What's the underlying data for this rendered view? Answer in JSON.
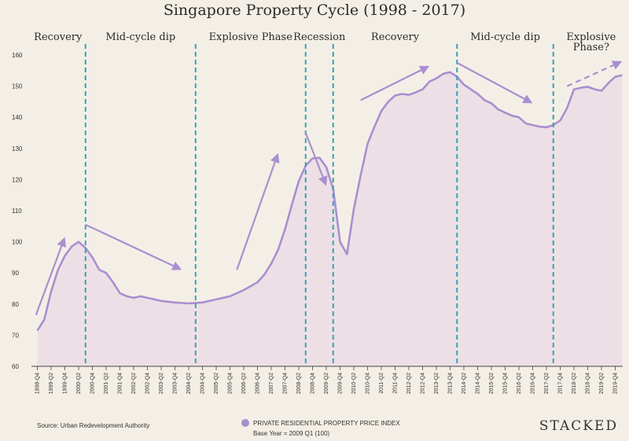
{
  "chart_data": {
    "type": "area",
    "title": "Singapore Property Cycle (1998 - 2017)",
    "ylim": [
      60,
      160
    ],
    "yticks": [
      60,
      70,
      80,
      90,
      100,
      110,
      120,
      130,
      140,
      150,
      160
    ],
    "x": [
      "1998-Q4",
      "1999-Q2",
      "1999-Q4",
      "2000-Q2",
      "2000-Q4",
      "2001-Q2",
      "2001-Q4",
      "2002-Q2",
      "2002-Q4",
      "2003-Q2",
      "2003-Q4",
      "2004-Q2",
      "2004-Q4",
      "2005-Q2",
      "2005-Q4",
      "2006-Q2",
      "2006-Q4",
      "2007-Q2",
      "2007-Q4",
      "2008-Q2",
      "2008-Q4",
      "2009-Q2",
      "2009-Q4",
      "2010-Q2",
      "2010-Q4",
      "2011-Q2",
      "2011-Q4",
      "2012-Q2",
      "2012-Q4",
      "2013-Q2",
      "2013-Q4",
      "2014-Q2",
      "2014-Q4",
      "2015-Q2",
      "2015-Q4",
      "2016-Q2",
      "2016-Q4",
      "2017-Q2",
      "2017-Q4",
      "2018-Q2",
      "2018-Q4",
      "2019-Q2",
      "2019-Q4"
    ],
    "series": [
      {
        "name": "PRIVATE RESIDENTIAL PROPERTY PRICE INDEX",
        "color": "#a98fcf",
        "x": [
          0,
          0.5,
          1,
          1.5,
          2,
          2.5,
          3,
          3.5,
          4,
          4.5,
          5,
          5.5,
          6,
          6.5,
          7,
          7.5,
          8,
          9,
          10,
          11,
          12,
          13,
          14,
          15,
          16,
          16.5,
          17,
          17.5,
          18,
          18.5,
          19,
          19.5,
          20,
          20.5,
          21,
          21.5,
          22,
          22.5,
          23,
          23.5,
          24,
          24.5,
          25,
          25.5,
          26,
          26.5,
          27,
          27.5,
          28,
          28.5,
          29,
          29.5,
          30,
          30.5,
          31,
          31.5,
          32,
          32.5,
          33,
          33.5,
          34,
          34.5,
          35,
          35.5,
          36,
          36.5,
          37,
          37.5,
          38,
          38.5,
          39,
          39.5,
          40,
          40.5,
          41,
          41.5,
          42,
          42.5
        ],
        "values": [
          71.5,
          75,
          84,
          91,
          95.5,
          98.5,
          100,
          98,
          95,
          91,
          90,
          87,
          83.5,
          82.5,
          82,
          82.5,
          82,
          81,
          80.5,
          80.2,
          80.5,
          81.5,
          82.5,
          84.5,
          87,
          89.5,
          93,
          97.5,
          104,
          112,
          119.5,
          124.5,
          126.8,
          127,
          124,
          117,
          100,
          96,
          110.5,
          121.5,
          131.5,
          137,
          142,
          145,
          147,
          147.5,
          147.2,
          148,
          149,
          151.5,
          152.5,
          154,
          154.5,
          153,
          150.5,
          149,
          147.5,
          145.5,
          144.5,
          142.5,
          141.5,
          140.5,
          140,
          138,
          137.5,
          137,
          136.8,
          137.5,
          139,
          143,
          149,
          149.5,
          149.8,
          149,
          148.5,
          151,
          153,
          153.5
        ]
      }
    ],
    "phases": [
      {
        "label": "Recovery"
      },
      {
        "label": "Mid-cycle dip"
      },
      {
        "label": "Explosive Phase"
      },
      {
        "label": "Recession"
      },
      {
        "label": "Recovery"
      },
      {
        "label": "Mid-cycle dip"
      },
      {
        "label": "Explosive",
        "label2": "Phase?"
      }
    ],
    "dividers_at_x": [
      3.5,
      11.5,
      19.5,
      21.5,
      30.5,
      37.5
    ],
    "trend_arrows": [
      {
        "from": [
          -0.1,
          76.5
        ],
        "to": [
          2,
          101.5
        ],
        "style": "solid"
      },
      {
        "from": [
          3.5,
          105.5
        ],
        "to": [
          10.5,
          91
        ],
        "style": "solid"
      },
      {
        "from": [
          14.5,
          91
        ],
        "to": [
          17.5,
          128.5
        ],
        "style": "solid"
      },
      {
        "from": [
          19.5,
          135
        ],
        "to": [
          21,
          118
        ],
        "style": "solid"
      },
      {
        "from": [
          23.5,
          145.5
        ],
        "to": [
          28.5,
          156.5
        ],
        "style": "solid"
      },
      {
        "from": [
          30.5,
          157.5
        ],
        "to": [
          36,
          144.5
        ],
        "style": "solid"
      },
      {
        "from": [
          38.5,
          150
        ],
        "to": [
          42.5,
          158
        ],
        "style": "dashed"
      }
    ],
    "legend": {
      "label": "PRIVATE RESIDENTIAL PROPERTY PRICE INDEX",
      "base": "Base Year = 2009 Q1 (100)",
      "position": "bottom-center"
    },
    "source": "Source: Urban Redevelopment Authority"
  },
  "brand": "STACKED",
  "colors": {
    "background": "#f4efe6",
    "line": "#a98fcf",
    "divider": "#3aa0b7",
    "axis": "#444444"
  }
}
